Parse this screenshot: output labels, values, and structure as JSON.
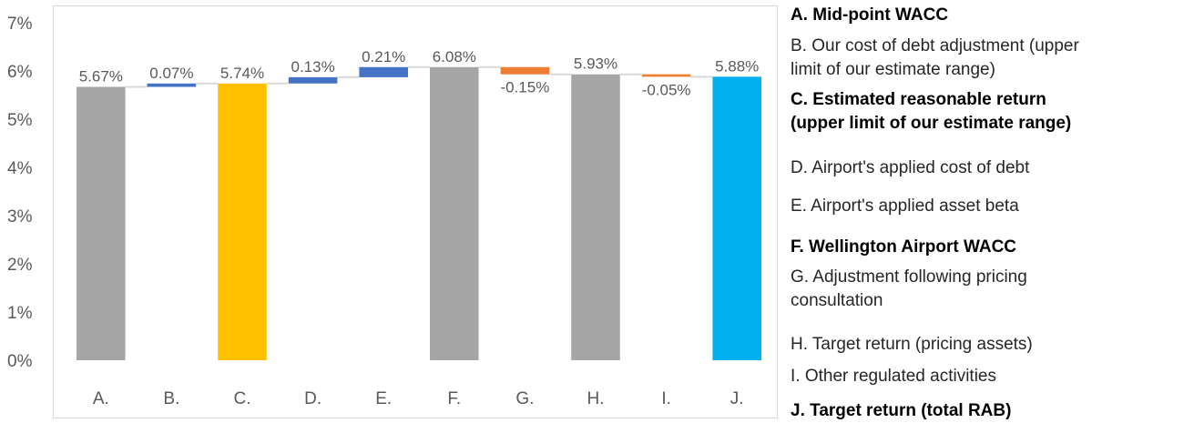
{
  "chart_data": {
    "type": "bar",
    "subtype": "waterfall",
    "categories": [
      "A.",
      "B.",
      "C.",
      "D.",
      "E.",
      "F.",
      "G.",
      "H.",
      "I.",
      "J."
    ],
    "values": [
      5.67,
      0.07,
      5.74,
      0.13,
      0.21,
      6.08,
      -0.15,
      5.93,
      -0.05,
      5.88
    ],
    "data_labels": [
      "5.67%",
      "0.07%",
      "5.74%",
      "0.13%",
      "0.21%",
      "6.08%",
      "-0.15%",
      "5.93%",
      "-0.05%",
      "5.88%"
    ],
    "bar_kinds": [
      "total",
      "delta",
      "total",
      "delta",
      "delta",
      "total",
      "delta",
      "total",
      "delta",
      "total"
    ],
    "bar_colors": [
      "#a5a5a5",
      "#4472c4",
      "#ffc000",
      "#4472c4",
      "#4472c4",
      "#a5a5a5",
      "#ed7d31",
      "#a5a5a5",
      "#ed7d31",
      "#00b0f0"
    ],
    "yticks": [
      "0%",
      "1%",
      "2%",
      "3%",
      "4%",
      "5%",
      "6%",
      "7%"
    ],
    "ylim": [
      0,
      7
    ],
    "grid": false,
    "connector_lines": true,
    "title": "",
    "xlabel": "",
    "ylabel": ""
  },
  "legend": {
    "placement": "right",
    "items": [
      {
        "text": "A. Mid-point WACC",
        "bold": true
      },
      {
        "text": "B. Our cost of debt adjustment (upper",
        "bold": false
      },
      {
        "text": "limit of our estimate range)",
        "bold": false
      },
      {
        "text": "C. Estimated reasonable return",
        "bold": true
      },
      {
        "text": "(upper limit of our estimate range)",
        "bold": true
      },
      {
        "text": "D. Airport's applied cost of debt",
        "bold": false
      },
      {
        "text": "E. Airport's applied asset beta",
        "bold": false
      },
      {
        "text": "F. Wellington Airport WACC",
        "bold": true
      },
      {
        "text": "G. Adjustment following pricing",
        "bold": false
      },
      {
        "text": "consultation",
        "bold": false
      },
      {
        "text": "H. Target return (pricing assets)",
        "bold": false
      },
      {
        "text": "I. Other regulated activities",
        "bold": false
      },
      {
        "text": "J. Target return (total RAB)",
        "bold": true
      }
    ]
  }
}
